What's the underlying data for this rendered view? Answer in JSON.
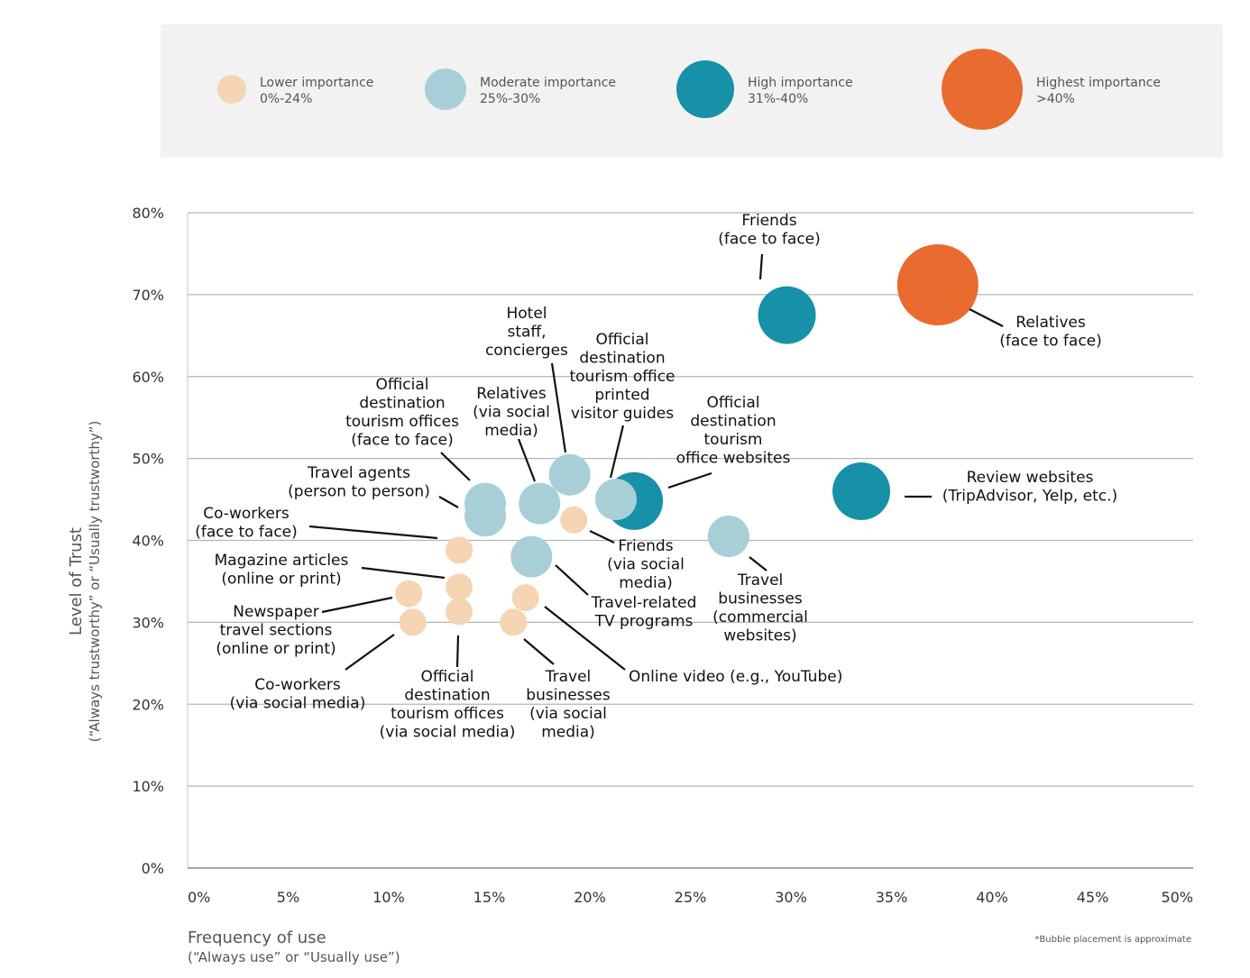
{
  "legend": [
    {
      "label": "Lower importance",
      "range": "0%-24%",
      "color": "#f5d5b3"
    },
    {
      "label": "Moderate importance",
      "range": "25%-30%",
      "color": "#a8cfd8"
    },
    {
      "label": "High importance",
      "range": "31%-40%",
      "color": "#1691a8"
    },
    {
      "label": "Highest importance",
      "range": ">40%",
      "color": "#e96b30"
    }
  ],
  "chart_data": {
    "type": "scatter",
    "xlabel": "Frequency of use",
    "xlabel_sub": "(“Always use” or “Usually use”)",
    "ylabel": "Level of Trust",
    "ylabel_sub": "(“Always trustworthy” or “Usually trustworthy”)",
    "xlim": [
      0,
      50
    ],
    "ylim": [
      0,
      80
    ],
    "x_ticks": [
      "0%",
      "5%",
      "10%",
      "15%",
      "20%",
      "25%",
      "30%",
      "35%",
      "40%",
      "45%",
      "50%"
    ],
    "y_ticks": [
      "0%",
      "10%",
      "20%",
      "30%",
      "40%",
      "50%",
      "60%",
      "70%",
      "80%"
    ],
    "grid": true,
    "note": "*Bubble placement is approximate",
    "points": [
      {
        "label": "Friends (face to face)",
        "lines": [
          "Friends",
          "(face to face)"
        ],
        "x": 29.8,
        "y": 67.5,
        "level": 2
      },
      {
        "label": "Relatives (face to face)",
        "lines": [
          "Relatives",
          "(face to face)"
        ],
        "x": 37.3,
        "y": 71.2,
        "level": 3
      },
      {
        "label": "Review websites (TripAdvisor, Yelp, etc.)",
        "lines": [
          "Review websites",
          "(TripAdvisor, Yelp, etc.)"
        ],
        "x": 33.5,
        "y": 46.0,
        "level": 2
      },
      {
        "label": "Official destination tourism office websites",
        "lines": [
          "Official",
          "destination",
          "tourism",
          "office websites"
        ],
        "x": 22.2,
        "y": 44.8,
        "level": 2
      },
      {
        "label": "Official destination tourism office printed visitor guides",
        "lines": [
          "Official",
          "destination",
          "tourism office",
          "printed",
          "visitor guides"
        ],
        "x": 21.3,
        "y": 45.0,
        "level": 1
      },
      {
        "label": "Hotel staff, concierges",
        "lines": [
          "Hotel",
          "staff,",
          "concierges"
        ],
        "x": 19.0,
        "y": 48.0,
        "level": 1
      },
      {
        "label": "Relatives (via social media)",
        "lines": [
          "Relatives",
          "(via social",
          "media)"
        ],
        "x": 17.5,
        "y": 44.5,
        "level": 1
      },
      {
        "label": "Official destination tourism offices (face to face)",
        "lines": [
          "Official",
          "destination",
          "tourism offices",
          "(face to face)"
        ],
        "x": 14.8,
        "y": 44.5,
        "level": 1
      },
      {
        "label": "Travel agents (person to person)",
        "lines": [
          "Travel agents",
          "(person to person)"
        ],
        "x": 14.8,
        "y": 43.0,
        "level": 1
      },
      {
        "label": "Travel businesses (commercial websites)",
        "lines": [
          "Travel",
          "businesses",
          "(commercial",
          "websites)"
        ],
        "x": 26.9,
        "y": 40.5,
        "level": 1
      },
      {
        "label": "Travel-related TV programs",
        "lines": [
          "Travel-related",
          "TV programs"
        ],
        "x": 17.1,
        "y": 38.0,
        "level": 1
      },
      {
        "label": "Friends (via social media)",
        "lines": [
          "Friends",
          "(via social",
          "media)"
        ],
        "x": 19.2,
        "y": 42.5,
        "level": 0
      },
      {
        "label": "Co-workers (face to face)",
        "lines": [
          "Co-workers",
          "(face to face)"
        ],
        "x": 13.5,
        "y": 38.8,
        "level": 0
      },
      {
        "label": "Magazine articles (online or print)",
        "lines": [
          "Magazine articles",
          "(online or print)"
        ],
        "x": 13.5,
        "y": 34.3,
        "level": 0
      },
      {
        "label": "Newspaper travel sections (online or print)",
        "lines": [
          "Newspaper",
          "travel sections",
          "(online or print)"
        ],
        "x": 11.0,
        "y": 33.5,
        "level": 0
      },
      {
        "label": "Co-workers (via social media)",
        "lines": [
          "Co-workers",
          "(via social media)"
        ],
        "x": 11.2,
        "y": 30.0,
        "level": 0
      },
      {
        "label": "Official destination tourism offices (via social media)",
        "lines": [
          "Official",
          "destination",
          "tourism offices",
          "(via social media)"
        ],
        "x": 13.5,
        "y": 31.3,
        "level": 0
      },
      {
        "label": "Travel businesses (via social media)",
        "lines": [
          "Travel",
          "businesses",
          "(via social",
          "media)"
        ],
        "x": 16.2,
        "y": 30.0,
        "level": 0
      },
      {
        "label": "Online video (e.g., YouTube)",
        "lines": [
          "Online video (e.g., YouTube)"
        ],
        "x": 16.8,
        "y": 33.0,
        "level": 0
      }
    ]
  }
}
